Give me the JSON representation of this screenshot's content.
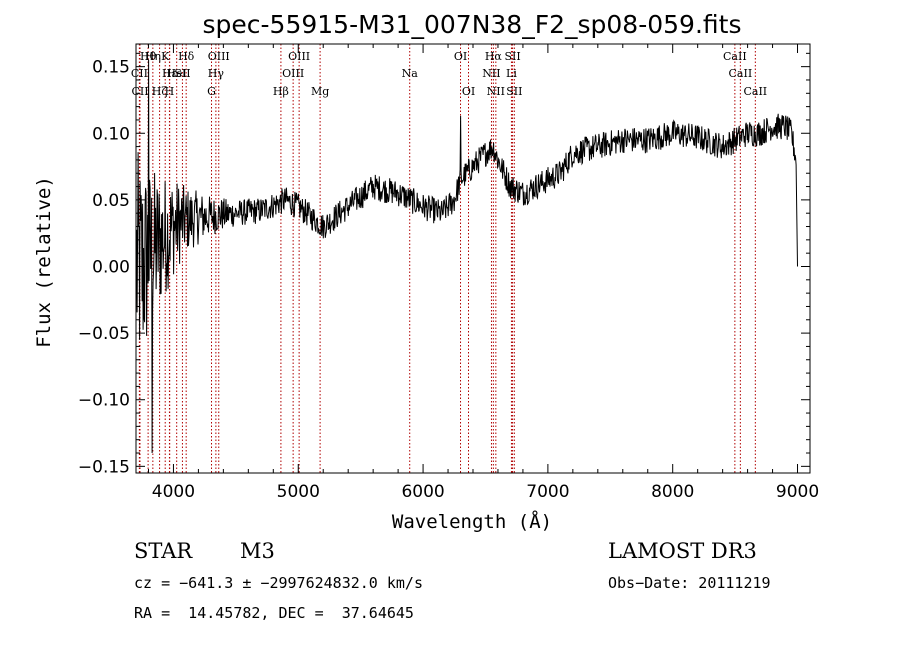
{
  "chart_data": {
    "type": "line",
    "title": "spec-55915-M31_007N38_F2_sp08-059.fits",
    "xlabel": "Wavelength (Å)",
    "ylabel": "Flux (relative)",
    "xlim": [
      3700,
      9100
    ],
    "ylim": [
      -0.155,
      0.167
    ],
    "x_ticks": [
      4000,
      5000,
      6000,
      7000,
      8000,
      9000
    ],
    "x_tick_labels": [
      "4000",
      "5000",
      "6000",
      "7000",
      "8000",
      "9000"
    ],
    "y_ticks": [
      -0.15,
      -0.1,
      -0.05,
      0.0,
      0.05,
      0.1,
      0.15
    ],
    "y_tick_labels": [
      "−0.15",
      "−0.10",
      "−0.05",
      "0.00",
      "0.05",
      "0.10",
      "0.15"
    ],
    "spectral_lines": [
      {
        "name": "Hθ",
        "wavelength": 3797,
        "row": 0
      },
      {
        "name": "Hη",
        "wavelength": 3835,
        "row": 0
      },
      {
        "name": "K",
        "wavelength": 3934,
        "row": 0
      },
      {
        "name": "Hδ",
        "wavelength": 4102,
        "row": 0
      },
      {
        "name": "OIII",
        "wavelength": 4363,
        "row": 0
      },
      {
        "name": "OIII",
        "wavelength": 5007,
        "row": 0
      },
      {
        "name": "OI",
        "wavelength": 6300,
        "row": 0
      },
      {
        "name": "Hα",
        "wavelength": 6563,
        "row": 0
      },
      {
        "name": "SII",
        "wavelength": 6717,
        "row": 0
      },
      {
        "name": "CaII",
        "wavelength": 8498,
        "row": 0
      },
      {
        "name": "CII",
        "wavelength": 3727,
        "row": 1
      },
      {
        "name": "Hε",
        "wavelength": 3970,
        "row": 1
      },
      {
        "name": "HeI",
        "wavelength": 4026,
        "row": 1
      },
      {
        "name": "SII",
        "wavelength": 4072,
        "row": 1
      },
      {
        "name": "Hγ",
        "wavelength": 4340,
        "row": 1
      },
      {
        "name": "OIII",
        "wavelength": 4959,
        "row": 1
      },
      {
        "name": "NII",
        "wavelength": 6548,
        "row": 1
      },
      {
        "name": "Li",
        "wavelength": 6708,
        "row": 1
      },
      {
        "name": "CaII",
        "wavelength": 8542,
        "row": 1
      },
      {
        "name": "CII",
        "wavelength": 3732,
        "row": 2
      },
      {
        "name": "Hζ",
        "wavelength": 3889,
        "row": 2
      },
      {
        "name": "H",
        "wavelength": 3968,
        "row": 2
      },
      {
        "name": "G",
        "wavelength": 4305,
        "row": 2
      },
      {
        "name": "Hβ",
        "wavelength": 4861,
        "row": 2
      },
      {
        "name": "Mg",
        "wavelength": 5175,
        "row": 2
      },
      {
        "name": "Na",
        "wavelength": 5893,
        "row": 1
      },
      {
        "name": "OI",
        "wavelength": 6364,
        "row": 2
      },
      {
        "name": "NII",
        "wavelength": 6583,
        "row": 2
      },
      {
        "name": "SII",
        "wavelength": 6731,
        "row": 2
      },
      {
        "name": "CaII",
        "wavelength": 8662,
        "row": 2
      }
    ],
    "continuum": {
      "x": [
        3750,
        3900,
        4000,
        4100,
        4300,
        4500,
        4700,
        4900,
        5000,
        5200,
        5400,
        5600,
        5800,
        6000,
        6150,
        6250,
        6300,
        6400,
        6500,
        6560,
        6600,
        6700,
        6800,
        7000,
        7100,
        7200,
        7400,
        7600,
        7800,
        8000,
        8200,
        8400,
        8500,
        8600,
        8700,
        8800,
        8900,
        8950,
        9000
      ],
      "y": [
        0.0,
        0.02,
        0.03,
        0.035,
        0.038,
        0.04,
        0.042,
        0.05,
        0.045,
        0.03,
        0.045,
        0.06,
        0.055,
        0.045,
        0.04,
        0.05,
        0.065,
        0.075,
        0.085,
        0.09,
        0.08,
        0.06,
        0.055,
        0.065,
        0.07,
        0.085,
        0.09,
        0.095,
        0.095,
        0.1,
        0.097,
        0.09,
        0.095,
        0.1,
        0.1,
        0.105,
        0.105,
        0.1,
        0.075
      ]
    },
    "noise_amplitude": {
      "x": [
        3700,
        3900,
        4100,
        4300,
        4500,
        9100
      ],
      "y": [
        0.09,
        0.05,
        0.025,
        0.015,
        0.01,
        0.01
      ]
    },
    "spikes": [
      {
        "wavelength": 6300,
        "flux": 0.113
      },
      {
        "wavelength": 3800,
        "flux": 0.155
      },
      {
        "wavelength": 3830,
        "flux": -0.14
      }
    ],
    "end_drop": {
      "wavelength": 9000,
      "flux": 0.0
    }
  },
  "info": {
    "object_class": "STAR",
    "subclass": "M3",
    "survey": "LAMOST DR3",
    "cz": "cz = −641.3 ± −2997624832.0 km/s",
    "obs_date": "Obs−Date: 20111219",
    "coords": "RA =  14.45782, DEC =  37.64645"
  }
}
